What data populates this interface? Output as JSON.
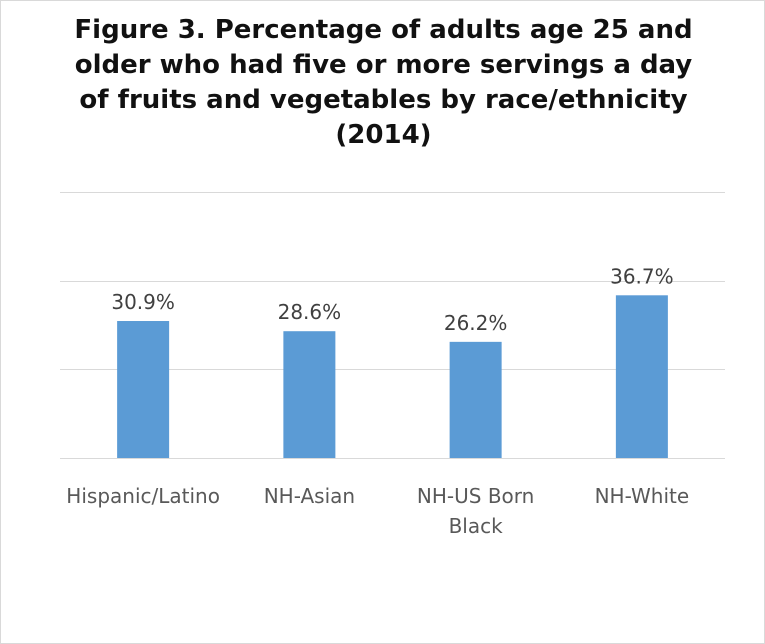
{
  "chart_data": {
    "type": "bar",
    "title": "Figure 3. Percentage of adults age 25 and older who had five or more servings a day of fruits and vegetables by race/ethnicity (2014)",
    "title_lines": [
      "Figure 3. Percentage of adults age 25 and",
      "older who had five or more servings a day",
      "of fruits and vegetables by race/ethnicity",
      "(2014)"
    ],
    "categories": [
      "Hispanic/Latino",
      "NH-Asian",
      "NH-US Born Black",
      "NH-White"
    ],
    "category_label_lines": [
      [
        "Hispanic/Latino"
      ],
      [
        "NH-Asian"
      ],
      [
        "NH-US Born",
        "Black"
      ],
      [
        "NH-White"
      ]
    ],
    "values": [
      30.9,
      28.6,
      26.2,
      36.7
    ],
    "data_labels": [
      "30.9%",
      "28.6%",
      "26.2%",
      "36.7%"
    ],
    "ylim": [
      0,
      60
    ],
    "gridlines": [
      0,
      20,
      40,
      60
    ],
    "grid": true,
    "y_axis_labels_shown": false,
    "legend": "none",
    "xlabel": "",
    "ylabel": "",
    "bar_color": "#5b9bd5",
    "grid_color": "#d9d9d9"
  }
}
